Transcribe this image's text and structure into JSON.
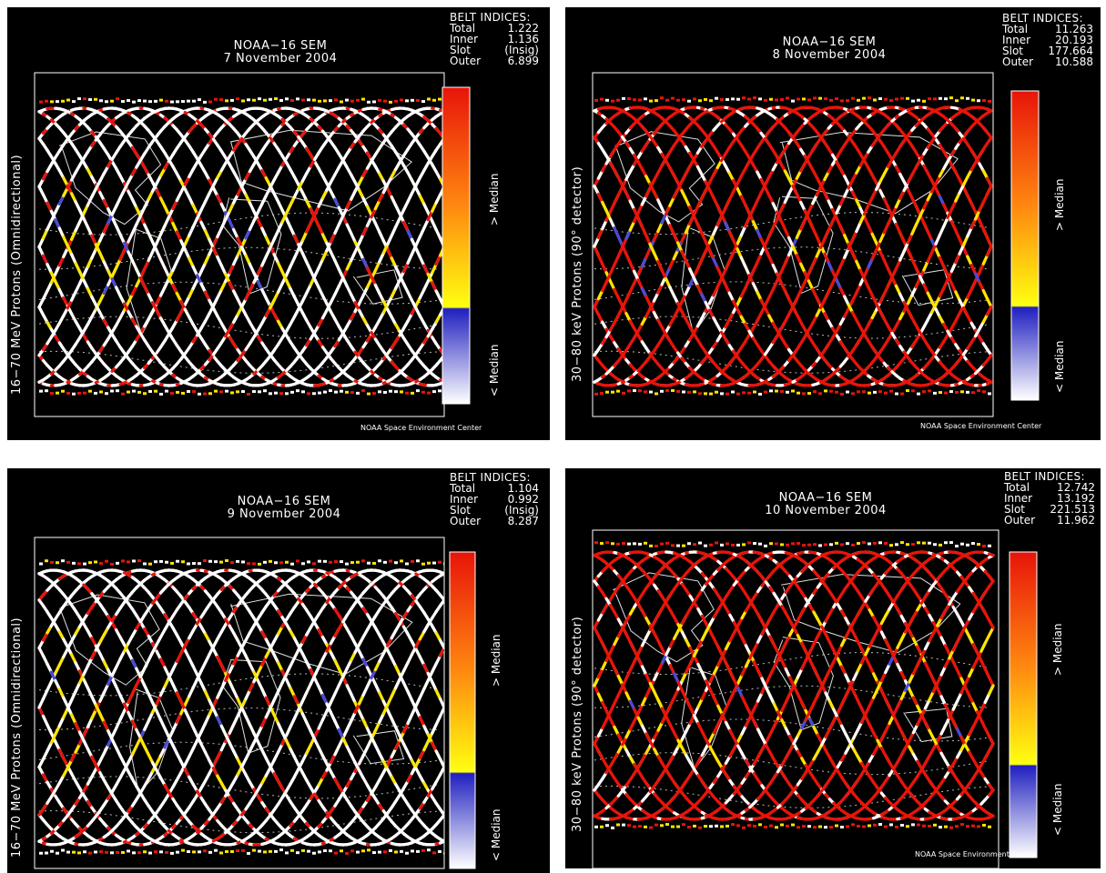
{
  "panels": [
    {
      "title": "NOAA−16 SEM",
      "date": "7 November 2004",
      "ylabel": "16−70 MeV Protons (Omnidirectional)",
      "belt": {
        "heading": "BELT INDICES:",
        "rows": [
          {
            "label": "Total",
            "value": "1.222"
          },
          {
            "label": "Inner",
            "value": "1.136"
          },
          {
            "label": "Slot",
            "value": "(Insig)"
          },
          {
            "label": "Outer",
            "value": "6.899"
          }
        ]
      },
      "colorbar": {
        "above": "> Median",
        "below": "< Median"
      },
      "credit": "NOAA Space Environment Center",
      "dominant_track_color": "white"
    },
    {
      "title": "NOAA−16 SEM",
      "date": "8 November 2004",
      "ylabel": "30−80 keV Protons (90° detector)",
      "belt": {
        "heading": "BELT INDICES:",
        "rows": [
          {
            "label": "Total",
            "value": "11.263"
          },
          {
            "label": "Inner",
            "value": "20.193"
          },
          {
            "label": "Slot",
            "value": "177.664"
          },
          {
            "label": "Outer",
            "value": "10.588"
          }
        ]
      },
      "colorbar": {
        "above": "> Median",
        "below": "< Median"
      },
      "credit": "NOAA Space Environment Center",
      "dominant_track_color": "red"
    },
    {
      "title": "NOAA−16 SEM",
      "date": "9 November 2004",
      "ylabel": "16−70 MeV Protons (Omnidirectional)",
      "belt": {
        "heading": "BELT INDICES:",
        "rows": [
          {
            "label": "Total",
            "value": "1.104"
          },
          {
            "label": "Inner",
            "value": "0.992"
          },
          {
            "label": "Slot",
            "value": "(Insig)"
          },
          {
            "label": "Outer",
            "value": "8.287"
          }
        ]
      },
      "colorbar": {
        "above": "> Median",
        "below": "< Median"
      },
      "credit": "",
      "dominant_track_color": "white"
    },
    {
      "title": "NOAA−16 SEM",
      "date": "10 November 2004",
      "ylabel": "30−80 keV Protons (90° detector)",
      "belt": {
        "heading": "BELT INDICES:",
        "rows": [
          {
            "label": "Total",
            "value": "12.742"
          },
          {
            "label": "Inner",
            "value": "13.192"
          },
          {
            "label": "Slot",
            "value": "221.513"
          },
          {
            "label": "Outer",
            "value": "11.962"
          }
        ]
      },
      "colorbar": {
        "above": "> Median",
        "below": "< Median"
      },
      "credit": "NOAA Space Environment Center",
      "dominant_track_color": "red"
    }
  ],
  "colors": {
    "background": "#000000",
    "track_white": "#ffffff",
    "track_red": "#e8140a",
    "track_yellow": "#ffe600",
    "track_blue": "#4a4ad8",
    "colorbar_top": "#e8140a",
    "colorbar_mid": "#ffff10",
    "colorbar_blue": "#2020c0",
    "colorbar_bottom": "#ffffff"
  }
}
